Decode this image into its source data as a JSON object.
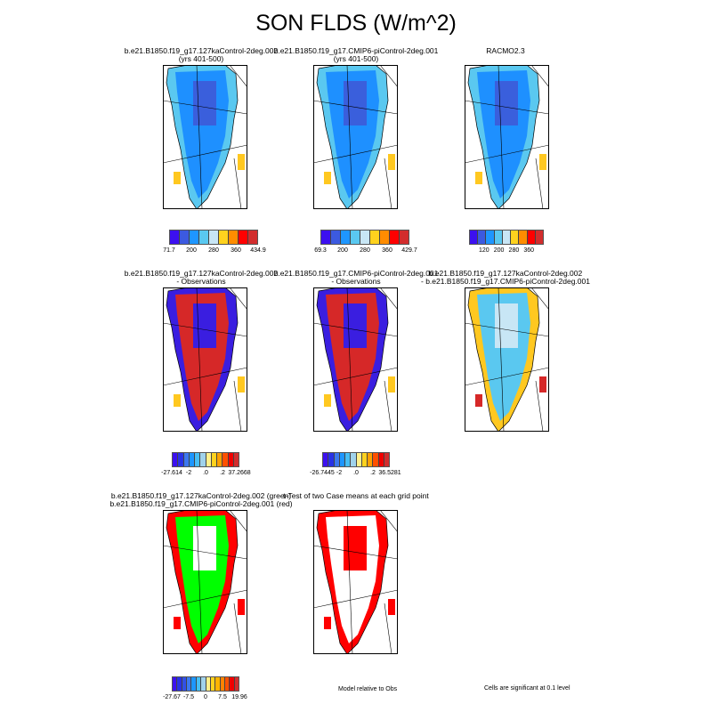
{
  "title": "SON FLDS (W/m^2)",
  "panels": [
    {
      "title1": "b.e21.B1850.f19_g17.127kaControl-2deg.002",
      "title2": "(yrs 401-500)",
      "fill": "#1e90ff",
      "accent": "#3a5fdc",
      "edge": "#5ac8f0",
      "spot": "#ffc820"
    },
    {
      "title1": "b.e21.B1850.f19_g17.CMIP6-piControl-2deg.001",
      "title2": "(yrs 401-500)",
      "fill": "#1e90ff",
      "accent": "#3a5fdc",
      "edge": "#5ac8f0",
      "spot": "#ffc820"
    },
    {
      "title1": "RACMO2.3",
      "title2": "",
      "fill": "#1e90ff",
      "accent": "#3a5fdc",
      "edge": "#5ac8f0",
      "spot": "#ffc820"
    },
    {
      "title1": "b.e21.B1850.f19_g17.127kaControl-2deg.002",
      "title2": "- Observations",
      "fill": "#d62828",
      "accent": "#3a1ee0",
      "edge": "#3a1ee0",
      "spot": "#ffc820"
    },
    {
      "title1": "b.e21.B1850.f19_g17.CMIP6-piControl-2deg.001",
      "title2": "- Observations",
      "fill": "#d62828",
      "accent": "#3a1ee0",
      "edge": "#3a1ee0",
      "spot": "#ffc820"
    },
    {
      "title1": "b.e21.B1850.f19_g17.127kaControl-2deg.002",
      "title2": "- b.e21.B1850.f19_g17.CMIP6-piControl-2deg.001",
      "fill": "#5ac8f0",
      "accent": "#c8e6f5",
      "edge": "#ffc820",
      "spot": "#d62828"
    },
    {
      "title1": "b.e21.B1850.f19_g17.127kaControl-2deg.002 (green)",
      "title2": "b.e21.B1850.f19_g17.CMIP6-piControl-2deg.001 (red)",
      "fill": "#00ff00",
      "accent": "#ffffff",
      "edge": "#ff0000",
      "spot": "#ff0000"
    },
    {
      "title1": "t-Test of two Case means at each grid point",
      "title2": "",
      "fill": "#ffffff",
      "accent": "#ff0000",
      "edge": "#ff0000",
      "spot": "#ff0000"
    }
  ],
  "colorbars": [
    {
      "colors": [
        "#3c10f0",
        "#3c5ae0",
        "#1e96ff",
        "#5ac8f0",
        "#c8e6f5",
        "#ffd21e",
        "#ff8c00",
        "#ff0000",
        "#d22d2d"
      ],
      "ticks": [
        "71.7",
        "200",
        "280",
        "360",
        "434.9"
      ]
    },
    {
      "colors": [
        "#3c10f0",
        "#3c5ae0",
        "#1e96ff",
        "#5ac8f0",
        "#c8e6f5",
        "#ffd21e",
        "#ff8c00",
        "#ff0000",
        "#d22d2d"
      ],
      "ticks": [
        "69.3",
        "200",
        "280",
        "360",
        "429.7"
      ]
    },
    {
      "colors": [
        "#3c10f0",
        "#3c5ae0",
        "#1e96ff",
        "#5ac8f0",
        "#c8e6f5",
        "#ffd21e",
        "#ff8c00",
        "#ff0000",
        "#d22d2d"
      ],
      "ticks": [
        "120",
        "200",
        "280",
        "360"
      ]
    },
    {
      "colors": [
        "#3c10f0",
        "#2832e6",
        "#3c78f0",
        "#1e96ff",
        "#46bef5",
        "#a0d2eb",
        "#fff08c",
        "#ffd21e",
        "#ffa000",
        "#ff5000",
        "#f00000",
        "#d22d2d"
      ],
      "ticks": [
        "-27.614",
        "-2",
        ".0",
        ".2",
        "37.2668"
      ]
    },
    {
      "colors": [
        "#3c10f0",
        "#2832e6",
        "#3c78f0",
        "#1e96ff",
        "#46bef5",
        "#a0d2eb",
        "#fff08c",
        "#ffd21e",
        "#ffa000",
        "#ff5000",
        "#f00000",
        "#d22d2d"
      ],
      "ticks": [
        "-26.7445",
        "-2",
        ".0",
        ".2",
        "36.5281"
      ]
    },
    {
      "colors": [
        "#3c10f0",
        "#2832e6",
        "#3250e6",
        "#3c78f0",
        "#1e96ff",
        "#46bef5",
        "#a0d2eb",
        "#fff08c",
        "#ffd21e",
        "#ffb400",
        "#ff8200",
        "#ff5000",
        "#f00000",
        "#d22d2d"
      ],
      "ticks": [
        "-27.67",
        "-7.5",
        "0",
        "7.5",
        "19.96"
      ]
    }
  ],
  "notes": {
    "model_relative": "Model relative to Obs",
    "significance": "Cells are significant at 0.1 level"
  }
}
